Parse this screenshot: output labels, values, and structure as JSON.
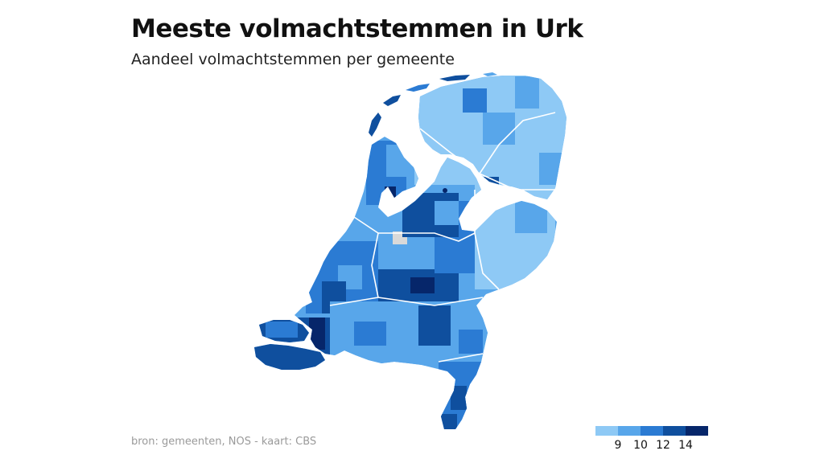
{
  "title": "Meeste volmachtstemmen in Urk",
  "subtitle": "Aandeel volmachtstemmen per gemeente",
  "source": "bron: gemeenten, NOS - kaart: CBS",
  "legend": {
    "colors": [
      "#8ec9f5",
      "#58a6ea",
      "#2b7bd3",
      "#0f4f9e",
      "#06266a"
    ],
    "ticks": [
      "9",
      "10",
      "12",
      "14"
    ]
  },
  "map": {
    "colors": {
      "level1": "#8ec9f5",
      "level2": "#58a6ea",
      "level3": "#2b7bd3",
      "level4": "#0f4f9e",
      "level5": "#06266a",
      "nodata": "#d9d9d9",
      "water": "#ffffff"
    }
  }
}
